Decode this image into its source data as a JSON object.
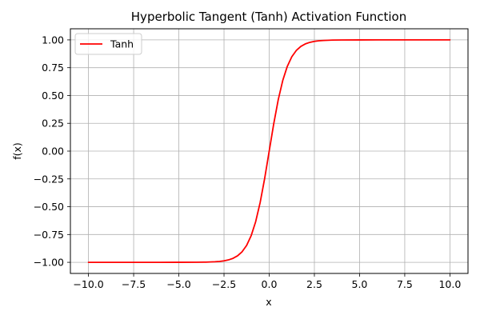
{
  "chart_data": {
    "type": "line",
    "title": "Hyperbolic Tangent (Tanh) Activation Function",
    "xlabel": "x",
    "ylabel": "f(x)",
    "xlim": [
      -11.0,
      11.0
    ],
    "ylim": [
      -1.1,
      1.1
    ],
    "grid": true,
    "legend_position": "top-left",
    "x_ticks": [
      -10.0,
      -7.5,
      -5.0,
      -2.5,
      0.0,
      2.5,
      5.0,
      7.5,
      10.0
    ],
    "x_tick_labels": [
      "−10.0",
      "−7.5",
      "−5.0",
      "−2.5",
      "0.0",
      "2.5",
      "5.0",
      "7.5",
      "10.0"
    ],
    "y_ticks": [
      -1.0,
      -0.75,
      -0.5,
      -0.25,
      0.0,
      0.25,
      0.5,
      0.75,
      1.0
    ],
    "y_tick_labels": [
      "−1.00",
      "−0.75",
      "−0.50",
      "−0.25",
      "0.00",
      "0.25",
      "0.50",
      "0.75",
      "1.00"
    ],
    "series": [
      {
        "name": "Tanh",
        "color": "#ff0000",
        "x": [
          -10,
          -8,
          -6,
          -5,
          -4,
          -3.5,
          -3,
          -2.75,
          -2.5,
          -2.25,
          -2,
          -1.75,
          -1.5,
          -1.25,
          -1,
          -0.75,
          -0.5,
          -0.25,
          0,
          0.25,
          0.5,
          0.75,
          1,
          1.25,
          1.5,
          1.75,
          2,
          2.25,
          2.5,
          2.75,
          3,
          3.5,
          4,
          5,
          6,
          8,
          10
        ],
        "y": [
          -1.0,
          -1.0,
          -0.99999,
          -0.99991,
          -0.99933,
          -0.99818,
          -0.99505,
          -0.99186,
          -0.98661,
          -0.97803,
          -0.96403,
          -0.94138,
          -0.90515,
          -0.84828,
          -0.76159,
          -0.63515,
          -0.46212,
          -0.24492,
          0.0,
          0.24492,
          0.46212,
          0.63515,
          0.76159,
          0.84828,
          0.90515,
          0.94138,
          0.96403,
          0.97803,
          0.98661,
          0.99186,
          0.99505,
          0.99818,
          0.99933,
          0.99991,
          0.99999,
          1.0,
          1.0
        ]
      }
    ]
  }
}
